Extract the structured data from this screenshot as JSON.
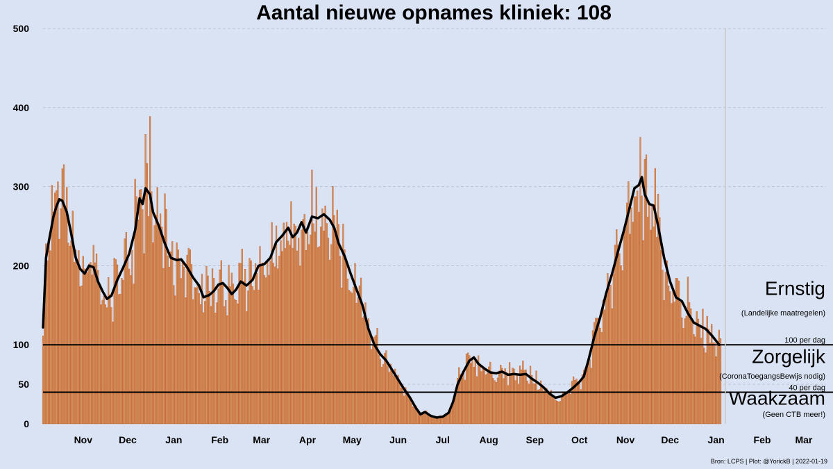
{
  "chart_data": {
    "type": "bar",
    "title": "Aantal nieuwe opnames kliniek:  108",
    "subtitle": "",
    "xlabel": "",
    "ylabel": "",
    "source": "Bron: LCPS | Plot: @YorickB |  2022-01-19",
    "x_start": "2020-10-20",
    "x_end": "2022-03-31",
    "current_date": "2022-01-19",
    "current_value": 108,
    "ylim": [
      0,
      500
    ],
    "y_ticks": [
      0,
      50,
      100,
      200,
      300,
      400,
      500
    ],
    "x_ticks": [
      {
        "label": "Nov",
        "date": "2020-11-01"
      },
      {
        "label": "Dec",
        "date": "2020-12-01"
      },
      {
        "label": "Jan",
        "date": "2021-01-01"
      },
      {
        "label": "Feb",
        "date": "2021-02-01"
      },
      {
        "label": "Mar",
        "date": "2021-03-01"
      },
      {
        "label": "Apr",
        "date": "2021-04-01"
      },
      {
        "label": "May",
        "date": "2021-05-01"
      },
      {
        "label": "Jun",
        "date": "2021-06-01"
      },
      {
        "label": "Jul",
        "date": "2021-07-01"
      },
      {
        "label": "Aug",
        "date": "2021-08-01"
      },
      {
        "label": "Sep",
        "date": "2021-09-01"
      },
      {
        "label": "Oct",
        "date": "2021-10-01"
      },
      {
        "label": "Nov",
        "date": "2021-11-01"
      },
      {
        "label": "Dec",
        "date": "2021-12-01"
      },
      {
        "label": "Jan",
        "date": "2022-01-01"
      },
      {
        "label": "Feb",
        "date": "2022-02-01"
      },
      {
        "label": "Mar",
        "date": "2022-03-01"
      }
    ],
    "thresholds": [
      {
        "value": 100,
        "label": "100 per dag"
      },
      {
        "value": 40,
        "label": "40 per dag"
      }
    ],
    "zones": [
      {
        "name": "Ernstig",
        "note": "(Landelijke maatregelen)",
        "anchor_value": 163,
        "note_value": 137
      },
      {
        "name": "Zorgelijk",
        "note": "(CoronaToegangsBewijs nodig)",
        "anchor_value": 77,
        "note_value": 57
      },
      {
        "name": "Waakzaam",
        "note": "(Geen CTB meer!)",
        "anchor_value": 24,
        "note_value": 9
      }
    ],
    "grid": true,
    "colors": {
      "background": "#dae3f3",
      "bar": "#d0925a",
      "bar_edge": "#c9572b",
      "line": "#000000",
      "grid": "#b9c3d6",
      "threshold": "#000000",
      "current_marker": "#c8c8c8"
    },
    "series": [
      {
        "name": "",
        "kind": "smoothed-line",
        "points": [
          [
            "2020-10-20",
            122
          ],
          [
            "2020-10-22",
            210
          ],
          [
            "2020-10-24",
            232
          ],
          [
            "2020-10-27",
            262
          ],
          [
            "2020-10-29",
            275
          ],
          [
            "2020-10-31",
            284
          ],
          [
            "2020-11-02",
            282
          ],
          [
            "2020-11-05",
            268
          ],
          [
            "2020-11-08",
            240
          ],
          [
            "2020-11-11",
            210
          ],
          [
            "2020-11-14",
            196
          ],
          [
            "2020-11-17",
            190
          ],
          [
            "2020-11-20",
            200
          ],
          [
            "2020-11-23",
            198
          ],
          [
            "2020-11-26",
            180
          ],
          [
            "2020-11-29",
            168
          ],
          [
            "2020-12-02",
            158
          ],
          [
            "2020-12-05",
            162
          ],
          [
            "2020-12-09",
            182
          ],
          [
            "2020-12-13",
            198
          ],
          [
            "2020-12-17",
            215
          ],
          [
            "2020-12-21",
            245
          ],
          [
            "2020-12-24",
            285
          ],
          [
            "2020-12-26",
            278
          ],
          [
            "2020-12-28",
            298
          ],
          [
            "2020-12-31",
            290
          ],
          [
            "2021-01-02",
            268
          ],
          [
            "2021-01-06",
            250
          ],
          [
            "2021-01-10",
            228
          ],
          [
            "2021-01-14",
            210
          ],
          [
            "2021-01-18",
            207
          ],
          [
            "2021-01-21",
            208
          ],
          [
            "2021-01-25",
            198
          ],
          [
            "2021-01-29",
            185
          ],
          [
            "2021-02-02",
            175
          ],
          [
            "2021-02-05",
            160
          ],
          [
            "2021-02-09",
            163
          ],
          [
            "2021-02-12",
            168
          ],
          [
            "2021-02-15",
            176
          ],
          [
            "2021-02-18",
            178
          ],
          [
            "2021-02-21",
            172
          ],
          [
            "2021-02-24",
            164
          ],
          [
            "2021-02-27",
            170
          ],
          [
            "2021-03-02",
            180
          ],
          [
            "2021-03-06",
            175
          ],
          [
            "2021-03-10",
            182
          ],
          [
            "2021-03-14",
            200
          ],
          [
            "2021-03-18",
            202
          ],
          [
            "2021-03-22",
            210
          ],
          [
            "2021-03-26",
            230
          ],
          [
            "2021-03-30",
            238
          ],
          [
            "2021-04-03",
            248
          ],
          [
            "2021-04-06",
            236
          ],
          [
            "2021-04-09",
            242
          ],
          [
            "2021-04-12",
            255
          ],
          [
            "2021-04-15",
            242
          ],
          [
            "2021-04-19",
            262
          ],
          [
            "2021-04-23",
            260
          ],
          [
            "2021-04-27",
            265
          ],
          [
            "2021-05-01",
            258
          ],
          [
            "2021-05-04",
            248
          ],
          [
            "2021-05-07",
            228
          ],
          [
            "2021-05-11",
            212
          ],
          [
            "2021-05-15",
            190
          ],
          [
            "2021-05-19",
            170
          ],
          [
            "2021-05-23",
            150
          ],
          [
            "2021-05-27",
            120
          ],
          [
            "2021-05-31",
            100
          ],
          [
            "2021-06-04",
            88
          ],
          [
            "2021-06-08",
            80
          ],
          [
            "2021-06-12",
            68
          ],
          [
            "2021-06-16",
            56
          ],
          [
            "2021-06-20",
            44
          ],
          [
            "2021-06-24",
            33
          ],
          [
            "2021-06-28",
            20
          ],
          [
            "2021-07-01",
            12
          ],
          [
            "2021-07-04",
            15
          ],
          [
            "2021-07-08",
            10
          ],
          [
            "2021-07-12",
            8
          ],
          [
            "2021-07-16",
            9
          ],
          [
            "2021-07-20",
            14
          ],
          [
            "2021-07-23",
            28
          ],
          [
            "2021-07-26",
            50
          ],
          [
            "2021-07-30",
            66
          ],
          [
            "2021-08-03",
            80
          ],
          [
            "2021-08-06",
            84
          ],
          [
            "2021-08-09",
            76
          ],
          [
            "2021-08-13",
            70
          ],
          [
            "2021-08-17",
            65
          ],
          [
            "2021-08-21",
            64
          ],
          [
            "2021-08-25",
            66
          ],
          [
            "2021-08-29",
            62
          ],
          [
            "2021-09-02",
            63
          ],
          [
            "2021-09-06",
            62
          ],
          [
            "2021-09-10",
            63
          ],
          [
            "2021-09-14",
            57
          ],
          [
            "2021-09-18",
            52
          ],
          [
            "2021-09-22",
            46
          ],
          [
            "2021-09-26",
            38
          ],
          [
            "2021-09-30",
            33
          ],
          [
            "2021-10-04",
            35
          ],
          [
            "2021-10-08",
            40
          ],
          [
            "2021-10-12",
            46
          ],
          [
            "2021-10-16",
            53
          ],
          [
            "2021-10-19",
            60
          ],
          [
            "2021-10-22",
            80
          ],
          [
            "2021-10-26",
            110
          ],
          [
            "2021-10-30",
            135
          ],
          [
            "2021-11-03",
            165
          ],
          [
            "2021-11-07",
            190
          ],
          [
            "2021-11-11",
            218
          ],
          [
            "2021-11-15",
            245
          ],
          [
            "2021-11-19",
            275
          ],
          [
            "2021-11-22",
            298
          ],
          [
            "2021-11-25",
            302
          ],
          [
            "2021-11-27",
            312
          ],
          [
            "2021-11-29",
            290
          ],
          [
            "2021-12-02",
            278
          ],
          [
            "2021-12-05",
            276
          ],
          [
            "2021-12-08",
            250
          ],
          [
            "2021-12-12",
            210
          ],
          [
            "2021-12-16",
            180
          ],
          [
            "2021-12-20",
            160
          ],
          [
            "2021-12-24",
            155
          ],
          [
            "2021-12-28",
            140
          ],
          [
            "2022-01-01",
            128
          ],
          [
            "2022-01-05",
            124
          ],
          [
            "2022-01-09",
            120
          ],
          [
            "2022-01-13",
            112
          ],
          [
            "2022-01-16",
            105
          ],
          [
            "2022-01-18",
            100
          ]
        ]
      }
    ]
  }
}
